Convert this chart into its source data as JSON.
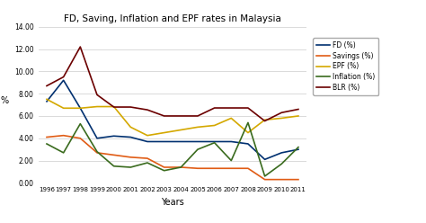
{
  "title": "FD, Saving, Inflation and EPF rates in Malaysia",
  "xlabel": "Years",
  "ylabel": "%",
  "years": [
    1996,
    1997,
    1998,
    1999,
    2000,
    2001,
    2002,
    2003,
    2004,
    2005,
    2006,
    2007,
    2008,
    2009,
    2010,
    2011
  ],
  "FD": [
    7.3,
    9.2,
    6.7,
    4.0,
    4.2,
    4.1,
    3.7,
    3.7,
    3.7,
    3.7,
    3.7,
    3.7,
    3.5,
    2.1,
    2.7,
    3.0
  ],
  "Savings": [
    4.1,
    4.25,
    4.0,
    2.7,
    2.5,
    2.3,
    2.2,
    1.4,
    1.4,
    1.3,
    1.3,
    1.3,
    1.3,
    0.3,
    0.3,
    0.3
  ],
  "EPF": [
    7.5,
    6.7,
    6.7,
    6.84,
    6.84,
    5.0,
    4.25,
    4.5,
    4.75,
    5.0,
    5.15,
    5.8,
    4.5,
    5.65,
    5.8,
    6.0
  ],
  "Inflation": [
    3.5,
    2.7,
    5.3,
    2.8,
    1.5,
    1.4,
    1.8,
    1.1,
    1.4,
    3.0,
    3.6,
    2.0,
    5.4,
    0.6,
    1.7,
    3.2
  ],
  "BLR": [
    8.7,
    9.5,
    12.2,
    7.9,
    6.8,
    6.8,
    6.55,
    6.0,
    6.0,
    6.0,
    6.72,
    6.72,
    6.72,
    5.55,
    6.3,
    6.6
  ],
  "FD_color": "#003070",
  "Savings_color": "#e05c15",
  "EPF_color": "#d4a800",
  "Inflation_color": "#3a6b1e",
  "BLR_color": "#6b0000",
  "ylim": [
    0,
    14
  ],
  "yticks": [
    0.0,
    2.0,
    4.0,
    6.0,
    8.0,
    10.0,
    12.0,
    14.0
  ],
  "background_color": "#ffffff",
  "grid_color": "#cccccc"
}
